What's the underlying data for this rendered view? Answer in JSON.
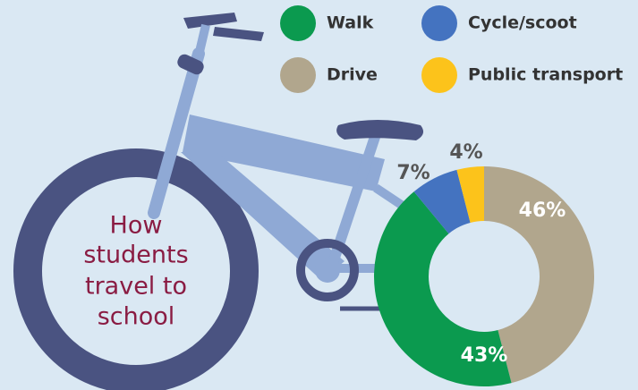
{
  "chart_data": {
    "type": "donut",
    "title": [
      "How",
      "students",
      "travel to",
      "school"
    ],
    "categories": [
      "Drive",
      "Walk",
      "Cycle/scoot",
      "Public transport"
    ],
    "values": [
      46,
      43,
      7,
      4
    ],
    "value_labels": [
      "46%",
      "43%",
      "7%",
      "4%"
    ],
    "colors": [
      "#b1a68d",
      "#0b9a4f",
      "#4473c0",
      "#fcc31b"
    ]
  }
}
